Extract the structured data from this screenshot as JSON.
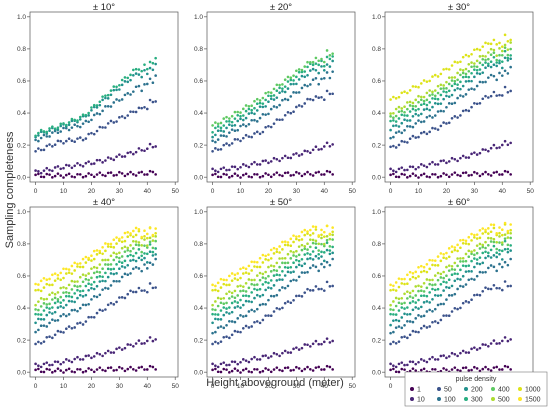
{
  "figure": {
    "ylabel": "Sampling completeness",
    "xlabel": "Height aboveground (meter)"
  },
  "legend": {
    "title": "pulse density",
    "entries": [
      {
        "label": "1",
        "color": "#440154"
      },
      {
        "label": "10",
        "color": "#482576"
      },
      {
        "label": "50",
        "color": "#3b528b"
      },
      {
        "label": "100",
        "color": "#2c728e"
      },
      {
        "label": "200",
        "color": "#21918c"
      },
      {
        "label": "300",
        "color": "#28ae80"
      },
      {
        "label": "400",
        "color": "#5ec962"
      },
      {
        "label": "500",
        "color": "#addc30"
      },
      {
        "label": "1000",
        "color": "#dde318"
      },
      {
        "label": "1500",
        "color": "#fde725"
      }
    ]
  },
  "axes": {
    "xlim": [
      -2,
      51
    ],
    "ylim": [
      -0.03,
      1.03
    ],
    "xticks": [
      0,
      10,
      20,
      30,
      40,
      50
    ],
    "yticks": [
      0.0,
      0.2,
      0.4,
      0.6,
      0.8,
      1.0
    ],
    "ytick_labels": [
      "0.0",
      "0.2",
      "0.4",
      "0.6",
      "0.8",
      "1.0"
    ],
    "grid": false
  },
  "chart_data": [
    {
      "type": "scatter",
      "title": "± 10°",
      "x_range": [
        0,
        43
      ],
      "series": [
        {
          "name": "1",
          "y": [
            0.01,
            0.01,
            0.01,
            0.02,
            0.02,
            0.03
          ]
        },
        {
          "name": "10",
          "y": [
            0.03,
            0.06,
            0.08,
            0.11,
            0.15,
            0.21
          ]
        },
        {
          "name": "50",
          "y": [
            0.16,
            0.22,
            0.24,
            0.33,
            0.4,
            0.5
          ]
        },
        {
          "name": "100",
          "y": [
            0.23,
            0.29,
            0.33,
            0.44,
            0.53,
            0.65
          ]
        },
        {
          "name": "200",
          "y": [
            0.26,
            0.31,
            0.37,
            0.5,
            0.62,
            0.72
          ]
        },
        {
          "name": "300",
          "y": [
            0.27,
            0.32,
            0.38,
            0.52,
            0.65,
            0.76
          ]
        }
      ]
    },
    {
      "type": "scatter",
      "title": "± 20°",
      "x_range": [
        0,
        43
      ],
      "series": [
        {
          "name": "1",
          "y": [
            0.01,
            0.01,
            0.01,
            0.02,
            0.02,
            0.03
          ]
        },
        {
          "name": "10",
          "y": [
            0.04,
            0.06,
            0.09,
            0.12,
            0.16,
            0.22
          ]
        },
        {
          "name": "50",
          "y": [
            0.16,
            0.23,
            0.28,
            0.38,
            0.48,
            0.55
          ]
        },
        {
          "name": "100",
          "y": [
            0.22,
            0.3,
            0.37,
            0.48,
            0.58,
            0.68
          ]
        },
        {
          "name": "200",
          "y": [
            0.26,
            0.34,
            0.43,
            0.54,
            0.65,
            0.74
          ]
        },
        {
          "name": "300",
          "y": [
            0.29,
            0.37,
            0.46,
            0.57,
            0.69,
            0.78
          ]
        },
        {
          "name": "400",
          "y": [
            0.32,
            0.4,
            0.49,
            0.6,
            0.71,
            0.81
          ]
        }
      ]
    },
    {
      "type": "scatter",
      "title": "± 30°",
      "x_range": [
        0,
        43
      ],
      "series": [
        {
          "name": "1",
          "y": [
            0.01,
            0.01,
            0.01,
            0.02,
            0.02,
            0.03
          ]
        },
        {
          "name": "10",
          "y": [
            0.04,
            0.06,
            0.09,
            0.12,
            0.17,
            0.23
          ]
        },
        {
          "name": "50",
          "y": [
            0.18,
            0.25,
            0.31,
            0.4,
            0.5,
            0.57
          ]
        },
        {
          "name": "100",
          "y": [
            0.25,
            0.33,
            0.4,
            0.51,
            0.61,
            0.7
          ]
        },
        {
          "name": "200",
          "y": [
            0.3,
            0.38,
            0.46,
            0.57,
            0.68,
            0.77
          ]
        },
        {
          "name": "300",
          "y": [
            0.34,
            0.42,
            0.5,
            0.61,
            0.71,
            0.8
          ]
        },
        {
          "name": "400",
          "y": [
            0.37,
            0.45,
            0.53,
            0.64,
            0.74,
            0.83
          ]
        },
        {
          "name": "500",
          "y": [
            0.4,
            0.48,
            0.56,
            0.67,
            0.77,
            0.86
          ]
        },
        {
          "name": "1000",
          "y": [
            0.48,
            0.56,
            0.64,
            0.74,
            0.83,
            0.9
          ]
        }
      ]
    },
    {
      "type": "scatter",
      "title": "± 40°",
      "x_range": [
        0,
        43
      ],
      "series": [
        {
          "name": "1",
          "y": [
            0.01,
            0.01,
            0.01,
            0.02,
            0.02,
            0.03
          ]
        },
        {
          "name": "10",
          "y": [
            0.04,
            0.06,
            0.09,
            0.12,
            0.17,
            0.22
          ]
        },
        {
          "name": "50",
          "y": [
            0.17,
            0.25,
            0.31,
            0.41,
            0.5,
            0.56
          ]
        },
        {
          "name": "100",
          "y": [
            0.26,
            0.34,
            0.41,
            0.53,
            0.63,
            0.72
          ]
        },
        {
          "name": "200",
          "y": [
            0.31,
            0.4,
            0.48,
            0.59,
            0.69,
            0.77
          ]
        },
        {
          "name": "300",
          "y": [
            0.35,
            0.44,
            0.52,
            0.63,
            0.73,
            0.81
          ]
        },
        {
          "name": "400",
          "y": [
            0.39,
            0.47,
            0.56,
            0.67,
            0.77,
            0.84
          ]
        },
        {
          "name": "500",
          "y": [
            0.43,
            0.51,
            0.6,
            0.71,
            0.8,
            0.87
          ]
        },
        {
          "name": "1000",
          "y": [
            0.5,
            0.58,
            0.67,
            0.77,
            0.85,
            0.91
          ]
        },
        {
          "name": "1500",
          "y": [
            0.55,
            0.62,
            0.7,
            0.8,
            0.88,
            0.92
          ]
        }
      ]
    },
    {
      "type": "scatter",
      "title": "± 50°",
      "x_range": [
        0,
        43
      ],
      "series": [
        {
          "name": "1",
          "y": [
            0.01,
            0.01,
            0.01,
            0.02,
            0.02,
            0.03
          ]
        },
        {
          "name": "10",
          "y": [
            0.04,
            0.06,
            0.09,
            0.12,
            0.17,
            0.21
          ]
        },
        {
          "name": "50",
          "y": [
            0.17,
            0.25,
            0.32,
            0.42,
            0.51,
            0.57
          ]
        },
        {
          "name": "100",
          "y": [
            0.25,
            0.33,
            0.41,
            0.53,
            0.64,
            0.72
          ]
        },
        {
          "name": "200",
          "y": [
            0.31,
            0.4,
            0.48,
            0.6,
            0.7,
            0.78
          ]
        },
        {
          "name": "300",
          "y": [
            0.35,
            0.44,
            0.53,
            0.64,
            0.74,
            0.82
          ]
        },
        {
          "name": "400",
          "y": [
            0.39,
            0.48,
            0.57,
            0.68,
            0.78,
            0.85
          ]
        },
        {
          "name": "500",
          "y": [
            0.43,
            0.52,
            0.61,
            0.72,
            0.81,
            0.88
          ]
        },
        {
          "name": "1000",
          "y": [
            0.5,
            0.58,
            0.67,
            0.78,
            0.86,
            0.92
          ]
        },
        {
          "name": "1500",
          "y": [
            0.54,
            0.62,
            0.71,
            0.81,
            0.89,
            0.93
          ]
        }
      ]
    },
    {
      "type": "scatter",
      "title": "± 60°",
      "x_range": [
        0,
        43
      ],
      "series": [
        {
          "name": "1",
          "y": [
            0.01,
            0.01,
            0.01,
            0.02,
            0.02,
            0.03
          ]
        },
        {
          "name": "10",
          "y": [
            0.04,
            0.06,
            0.09,
            0.12,
            0.17,
            0.22
          ]
        },
        {
          "name": "50",
          "y": [
            0.17,
            0.25,
            0.32,
            0.42,
            0.52,
            0.57
          ]
        },
        {
          "name": "100",
          "y": [
            0.25,
            0.33,
            0.41,
            0.54,
            0.64,
            0.72
          ]
        },
        {
          "name": "200",
          "y": [
            0.3,
            0.39,
            0.48,
            0.6,
            0.71,
            0.79
          ]
        },
        {
          "name": "300",
          "y": [
            0.35,
            0.44,
            0.53,
            0.65,
            0.75,
            0.83
          ]
        },
        {
          "name": "400",
          "y": [
            0.39,
            0.48,
            0.57,
            0.69,
            0.79,
            0.86
          ]
        },
        {
          "name": "500",
          "y": [
            0.43,
            0.52,
            0.61,
            0.72,
            0.82,
            0.89
          ]
        },
        {
          "name": "1000",
          "y": [
            0.5,
            0.59,
            0.68,
            0.79,
            0.87,
            0.93
          ]
        },
        {
          "name": "1500",
          "y": [
            0.54,
            0.63,
            0.72,
            0.82,
            0.9,
            0.95
          ]
        }
      ]
    }
  ]
}
